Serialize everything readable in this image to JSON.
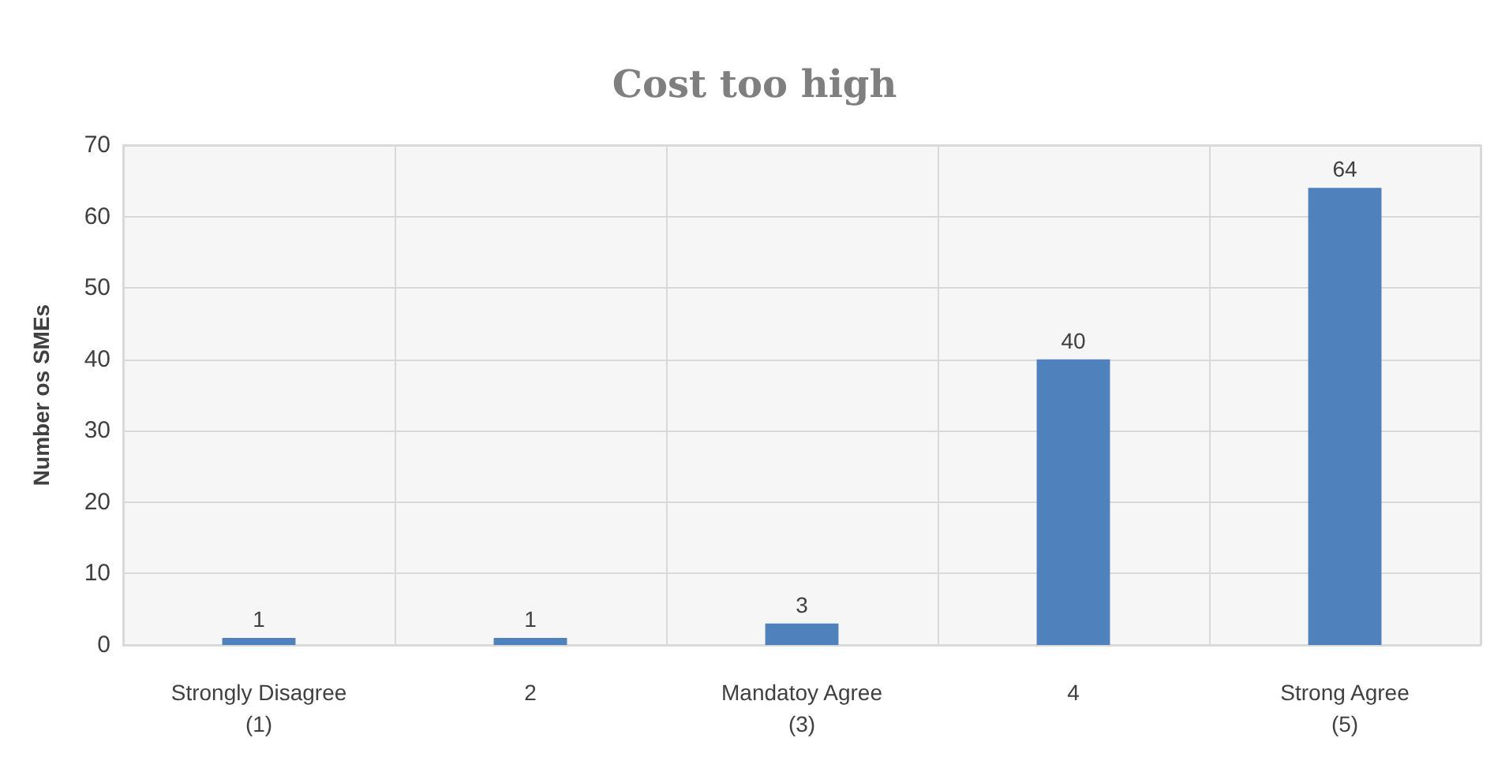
{
  "chart_data": {
    "type": "bar",
    "title": "Cost too high",
    "ylabel": "Number os SMEs",
    "categories": [
      "Strongly Disagree\n(1)",
      "2",
      "Mandatoy Agree\n(3)",
      "4",
      "Strong Agree\n(5)"
    ],
    "values": [
      1,
      1,
      3,
      40,
      64
    ],
    "color": "#4f81bd",
    "ylim": [
      0,
      70
    ],
    "yticks": [
      0,
      10,
      20,
      30,
      40,
      50,
      60,
      70
    ],
    "grid": true,
    "data_labels": true
  }
}
